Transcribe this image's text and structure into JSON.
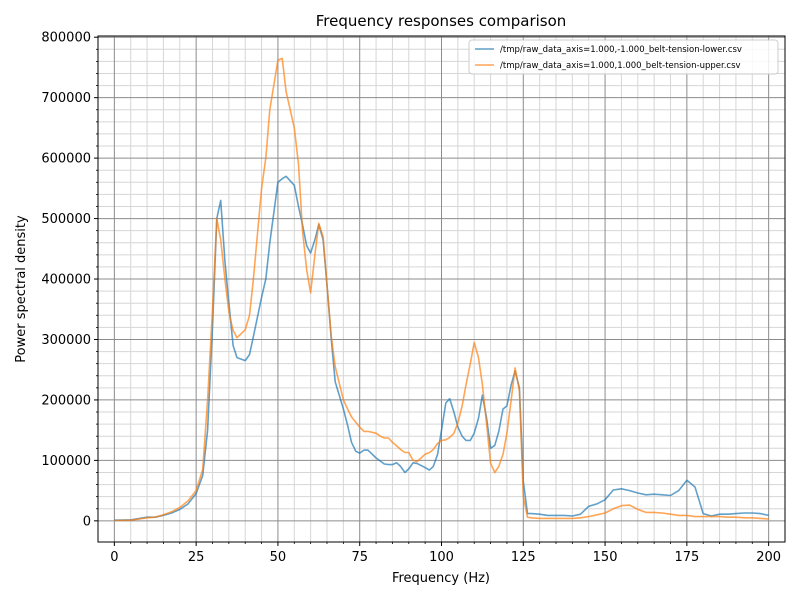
{
  "chart_data": {
    "type": "line",
    "title": "Frequency responses comparison",
    "xlabel": "Frequency (Hz)",
    "ylabel": "Power spectral density",
    "xlim": [
      -5,
      205
    ],
    "ylim": [
      -35000,
      802000
    ],
    "x_ticks": [
      0,
      25,
      50,
      75,
      100,
      125,
      150,
      175,
      200
    ],
    "x_tick_labels": [
      "0",
      "25",
      "50",
      "75",
      "100",
      "125",
      "150",
      "175",
      "200"
    ],
    "y_ticks": [
      0,
      100000,
      200000,
      300000,
      400000,
      500000,
      600000,
      700000,
      800000
    ],
    "y_tick_labels": [
      "0",
      "100000",
      "200000",
      "300000",
      "400000",
      "500000",
      "600000",
      "700000",
      "800000"
    ],
    "grid": true,
    "minor_grid": true,
    "legend_position": "top-right",
    "series": [
      {
        "name": "/tmp/raw_data_axis=1.000,-1.000_belt-tension-lower.csv",
        "color": "#1f77b4",
        "points": [
          [
            0,
            1000
          ],
          [
            5,
            1500
          ],
          [
            10,
            6000
          ],
          [
            12.5,
            6000
          ],
          [
            15,
            9000
          ],
          [
            17.5,
            13000
          ],
          [
            20,
            19000
          ],
          [
            22.5,
            28000
          ],
          [
            25,
            45000
          ],
          [
            27,
            75000
          ],
          [
            28.5,
            150000
          ],
          [
            30,
            320000
          ],
          [
            31.3,
            500000
          ],
          [
            32.5,
            530000
          ],
          [
            33.8,
            430000
          ],
          [
            35,
            360000
          ],
          [
            36.3,
            290000
          ],
          [
            37.5,
            270000
          ],
          [
            40,
            265000
          ],
          [
            41.3,
            275000
          ],
          [
            42.5,
            305000
          ],
          [
            45,
            370000
          ],
          [
            46.3,
            400000
          ],
          [
            47.5,
            460000
          ],
          [
            50,
            560000
          ],
          [
            51.3,
            566000
          ],
          [
            52.5,
            570000
          ],
          [
            55,
            555000
          ],
          [
            56.3,
            520000
          ],
          [
            57.5,
            490000
          ],
          [
            58.8,
            455000
          ],
          [
            60,
            443000
          ],
          [
            61.3,
            465000
          ],
          [
            62.5,
            490000
          ],
          [
            63.8,
            465000
          ],
          [
            65,
            390000
          ],
          [
            66.3,
            300000
          ],
          [
            67.5,
            230000
          ],
          [
            70,
            185000
          ],
          [
            71.3,
            158000
          ],
          [
            72.5,
            130000
          ],
          [
            73.8,
            115000
          ],
          [
            75,
            112000
          ],
          [
            76.3,
            117000
          ],
          [
            77.5,
            117000
          ],
          [
            80,
            104000
          ],
          [
            81.3,
            99000
          ],
          [
            82.5,
            94000
          ],
          [
            83.8,
            93000
          ],
          [
            85,
            93000
          ],
          [
            86.3,
            96000
          ],
          [
            87.5,
            90000
          ],
          [
            88.8,
            80000
          ],
          [
            90,
            86000
          ],
          [
            91.3,
            96000
          ],
          [
            92.5,
            95000
          ],
          [
            95,
            88000
          ],
          [
            96.3,
            84000
          ],
          [
            97.5,
            90000
          ],
          [
            98.8,
            110000
          ],
          [
            100,
            150000
          ],
          [
            101.3,
            195000
          ],
          [
            102.5,
            202000
          ],
          [
            103.8,
            180000
          ],
          [
            105,
            155000
          ],
          [
            106.3,
            140000
          ],
          [
            107.5,
            133000
          ],
          [
            108.8,
            133000
          ],
          [
            110,
            145000
          ],
          [
            111.3,
            170000
          ],
          [
            112.5,
            208000
          ],
          [
            113.8,
            170000
          ],
          [
            115,
            120000
          ],
          [
            116.3,
            125000
          ],
          [
            117.5,
            148000
          ],
          [
            118.8,
            185000
          ],
          [
            120,
            190000
          ],
          [
            121.3,
            225000
          ],
          [
            122.5,
            248000
          ],
          [
            123.8,
            220000
          ],
          [
            125,
            65000
          ],
          [
            126.3,
            12000
          ],
          [
            127.5,
            12000
          ],
          [
            130,
            11000
          ],
          [
            132.5,
            9000
          ],
          [
            135,
            9000
          ],
          [
            137.5,
            9000
          ],
          [
            140,
            8000
          ],
          [
            142.5,
            11000
          ],
          [
            145,
            24000
          ],
          [
            147.5,
            28000
          ],
          [
            150,
            35000
          ],
          [
            152.5,
            51000
          ],
          [
            155,
            53000
          ],
          [
            157.5,
            50000
          ],
          [
            160,
            46000
          ],
          [
            162.5,
            43000
          ],
          [
            165,
            44000
          ],
          [
            167.5,
            43000
          ],
          [
            170,
            42000
          ],
          [
            172.5,
            50000
          ],
          [
            175,
            67000
          ],
          [
            177.5,
            56000
          ],
          [
            180,
            12000
          ],
          [
            182.5,
            8000
          ],
          [
            185,
            11000
          ],
          [
            187.5,
            11000
          ],
          [
            190,
            12000
          ],
          [
            192.5,
            13000
          ],
          [
            195,
            13000
          ],
          [
            197.5,
            12000
          ],
          [
            200,
            9000
          ]
        ]
      },
      {
        "name": "/tmp/raw_data_axis=1.000,1.000_belt-tension-upper.csv",
        "color": "#ff7f0e",
        "points": [
          [
            0,
            500
          ],
          [
            5,
            1000
          ],
          [
            10,
            5000
          ],
          [
            12.5,
            6000
          ],
          [
            15,
            10000
          ],
          [
            17.5,
            15000
          ],
          [
            20,
            22000
          ],
          [
            22.5,
            33000
          ],
          [
            25,
            50000
          ],
          [
            27,
            85000
          ],
          [
            28.5,
            200000
          ],
          [
            30,
            350000
          ],
          [
            31.3,
            500000
          ],
          [
            32.5,
            465000
          ],
          [
            33.8,
            400000
          ],
          [
            35,
            345000
          ],
          [
            36.3,
            315000
          ],
          [
            37.5,
            303000
          ],
          [
            40,
            316000
          ],
          [
            41.3,
            340000
          ],
          [
            42.5,
            400000
          ],
          [
            45,
            550000
          ],
          [
            46.3,
            600000
          ],
          [
            47.5,
            680000
          ],
          [
            50,
            762000
          ],
          [
            51.3,
            765000
          ],
          [
            52.5,
            710000
          ],
          [
            55,
            650000
          ],
          [
            56.3,
            590000
          ],
          [
            57.5,
            480000
          ],
          [
            58.8,
            415000
          ],
          [
            60,
            377000
          ],
          [
            61.3,
            440000
          ],
          [
            62.5,
            492000
          ],
          [
            63.8,
            470000
          ],
          [
            65,
            390000
          ],
          [
            66.3,
            305000
          ],
          [
            67.5,
            255000
          ],
          [
            70,
            200000
          ],
          [
            71.3,
            185000
          ],
          [
            72.5,
            172000
          ],
          [
            73.8,
            163000
          ],
          [
            75,
            155000
          ],
          [
            76.3,
            148000
          ],
          [
            77.5,
            148000
          ],
          [
            80,
            145000
          ],
          [
            81.3,
            140000
          ],
          [
            82.5,
            137000
          ],
          [
            83.8,
            137000
          ],
          [
            85,
            130000
          ],
          [
            86.3,
            124000
          ],
          [
            87.5,
            118000
          ],
          [
            88.8,
            113000
          ],
          [
            90,
            113000
          ],
          [
            91.3,
            100000
          ],
          [
            92.5,
            98000
          ],
          [
            95,
            110000
          ],
          [
            96.3,
            113000
          ],
          [
            97.5,
            118000
          ],
          [
            98.8,
            128000
          ],
          [
            100,
            133000
          ],
          [
            101.3,
            134000
          ],
          [
            102.5,
            138000
          ],
          [
            103.8,
            145000
          ],
          [
            105,
            162000
          ],
          [
            106.3,
            190000
          ],
          [
            107.5,
            225000
          ],
          [
            108.8,
            260000
          ],
          [
            110,
            295000
          ],
          [
            111.3,
            270000
          ],
          [
            112.5,
            225000
          ],
          [
            113.8,
            160000
          ],
          [
            115,
            95000
          ],
          [
            116.3,
            80000
          ],
          [
            117.5,
            90000
          ],
          [
            118.8,
            110000
          ],
          [
            120,
            145000
          ],
          [
            121.3,
            200000
          ],
          [
            122.5,
            253000
          ],
          [
            123.8,
            215000
          ],
          [
            125,
            40000
          ],
          [
            126.3,
            6000
          ],
          [
            127.5,
            5000
          ],
          [
            130,
            4000
          ],
          [
            132.5,
            4000
          ],
          [
            135,
            4000
          ],
          [
            137.5,
            4000
          ],
          [
            140,
            4000
          ],
          [
            142.5,
            5000
          ],
          [
            145,
            7000
          ],
          [
            147.5,
            10000
          ],
          [
            150,
            13000
          ],
          [
            152.5,
            20000
          ],
          [
            155,
            25000
          ],
          [
            157.5,
            26000
          ],
          [
            160,
            19000
          ],
          [
            162.5,
            14000
          ],
          [
            165,
            14000
          ],
          [
            167.5,
            13000
          ],
          [
            170,
            11000
          ],
          [
            172.5,
            9000
          ],
          [
            175,
            9000
          ],
          [
            177.5,
            7000
          ],
          [
            180,
            7000
          ],
          [
            182.5,
            7000
          ],
          [
            185,
            7000
          ],
          [
            187.5,
            6000
          ],
          [
            190,
            6000
          ],
          [
            192.5,
            5000
          ],
          [
            195,
            5000
          ],
          [
            197.5,
            4000
          ],
          [
            200,
            3000
          ]
        ]
      }
    ]
  }
}
